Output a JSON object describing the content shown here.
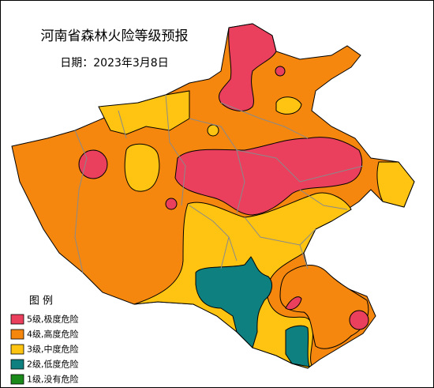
{
  "title": "河南省森林火险等级预报",
  "date": "日期：2023年3月8日",
  "legend": {
    "title": "图 例",
    "items": [
      {
        "label": "5级,极度危险",
        "color": "#ea3f5d"
      },
      {
        "label": "4级,高度危险",
        "color": "#f5870f"
      },
      {
        "label": "3级,中度危险",
        "color": "#ffc412"
      },
      {
        "label": "2级,低度危险",
        "color": "#0f8080"
      },
      {
        "label": "1级,没有危险",
        "color": "#1a8a1a"
      }
    ]
  }
}
